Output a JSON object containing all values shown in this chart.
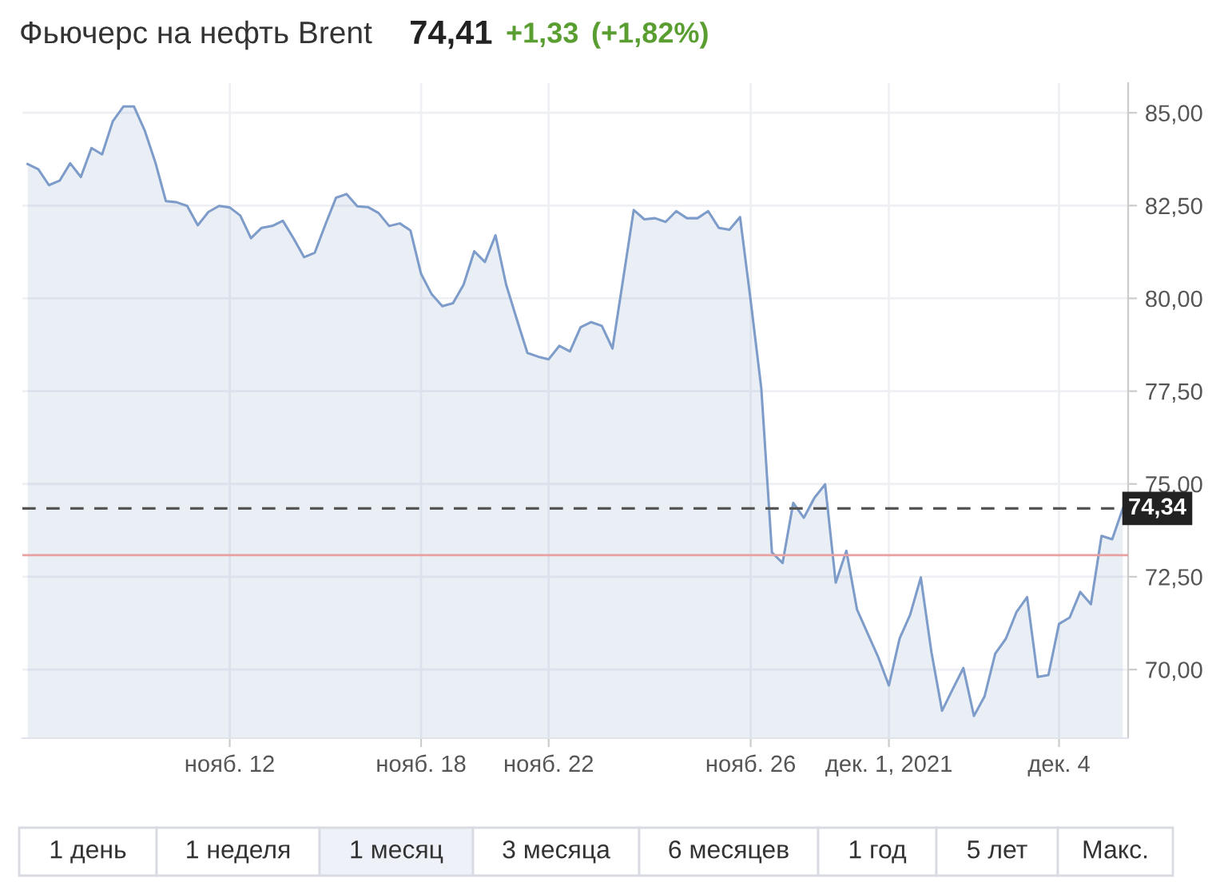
{
  "chart_data": {
    "type": "area",
    "title": "Фьючерс на нефть Brent",
    "categories": [
      null,
      null,
      null,
      null,
      null,
      null,
      null,
      null,
      null,
      null,
      null,
      null,
      null,
      null,
      null,
      null,
      null,
      null,
      null,
      "нояб. 12",
      null,
      null,
      null,
      null,
      null,
      null,
      null,
      null,
      null,
      null,
      null,
      null,
      null,
      null,
      null,
      null,
      null,
      "нояб. 18",
      null,
      null,
      null,
      null,
      null,
      null,
      null,
      null,
      null,
      null,
      null,
      "нояб. 22",
      null,
      null,
      null,
      null,
      null,
      null,
      null,
      null,
      null,
      null,
      null,
      null,
      null,
      null,
      null,
      null,
      null,
      null,
      "нояб. 26",
      null,
      null,
      null,
      null,
      null,
      null,
      null,
      null,
      null,
      null,
      null,
      null,
      "дек. 1, 2021",
      null,
      null,
      null,
      null,
      null,
      null,
      null,
      null,
      null,
      null,
      null,
      null,
      null,
      null,
      null,
      "дек. 4",
      null,
      null,
      null,
      null,
      null,
      null
    ],
    "series": [
      {
        "color": "#7e9cc9",
        "values": [
          83.62,
          83.48,
          83.05,
          83.17,
          83.64,
          83.27,
          84.05,
          83.88,
          84.77,
          85.17,
          85.17,
          84.53,
          83.67,
          82.62,
          82.59,
          82.49,
          81.97,
          82.33,
          82.49,
          82.45,
          82.23,
          81.62,
          81.9,
          81.95,
          82.09,
          81.62,
          81.11,
          81.23,
          81.99,
          82.71,
          82.81,
          82.48,
          82.46,
          82.3,
          81.95,
          82.02,
          81.83,
          80.66,
          80.11,
          79.79,
          79.87,
          80.37,
          81.27,
          80.98,
          81.7,
          80.37,
          79.44,
          78.53,
          78.43,
          78.36,
          78.72,
          78.57,
          79.22,
          79.36,
          79.26,
          78.65,
          80.51,
          82.38,
          82.13,
          82.16,
          82.06,
          82.35,
          82.16,
          82.16,
          82.35,
          81.9,
          81.85,
          82.19,
          79.94,
          77.57,
          73.15,
          72.87,
          74.49,
          74.09,
          74.63,
          74.99,
          72.34,
          73.2,
          71.62,
          70.97,
          70.33,
          69.57,
          70.83,
          71.48,
          72.48,
          70.47,
          68.89,
          69.47,
          70.04,
          68.75,
          69.28,
          70.43,
          70.83,
          71.55,
          71.95,
          69.8,
          69.85,
          71.23,
          71.4,
          72.09,
          71.76,
          73.6,
          73.51,
          74.34
        ]
      }
    ],
    "ylim": [
      68.15,
      85.8
    ],
    "yticks": [
      {
        "value": 70,
        "label": "70,00"
      },
      {
        "value": 72.5,
        "label": "72,50"
      },
      {
        "value": 75,
        "label": "75,00"
      },
      {
        "value": 77.5,
        "label": "77,50"
      },
      {
        "value": 80,
        "label": "80,00"
      },
      {
        "value": 82.5,
        "label": "82,50"
      },
      {
        "value": 85,
        "label": "85,00"
      }
    ],
    "grid": true,
    "ref_lines": [
      {
        "axis": "y",
        "value": 74.34,
        "label": "74,34",
        "color": "#555555",
        "line_style": "dashed"
      },
      {
        "axis": "y",
        "value": 73.08,
        "color": "#e8a0a0",
        "line_style": "solid"
      }
    ],
    "annotations": [
      "74,41",
      "+1,33",
      "(+1,82%)",
      "1 день",
      "1 неделя",
      "1 месяц",
      "3 месяца",
      "6 месяцев",
      "1 год",
      "5 лет",
      "Макс."
    ]
  }
}
